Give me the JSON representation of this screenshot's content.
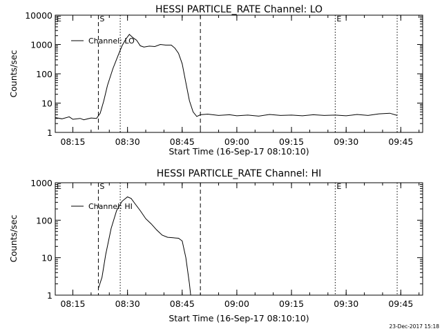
{
  "timestamp": "23-Dec-2017 15:18",
  "chart_data": [
    {
      "type": "line",
      "title": "HESSI PARTICLE_RATE Channel: LO",
      "xlabel": "Start Time (16-Sep-17 08:10:10)",
      "ylabel": "Counts/sec",
      "yscale": "log",
      "xlim": [
        "08:10:10",
        "09:51:00"
      ],
      "ylim": [
        1,
        10000
      ],
      "xticks": [
        "08:15",
        "08:30",
        "08:45",
        "09:00",
        "09:15",
        "09:30",
        "09:45"
      ],
      "yticks": [
        {
          "value": 1,
          "label": "1"
        },
        {
          "value": 10,
          "label": "10"
        },
        {
          "value": 100,
          "label": "100"
        },
        {
          "value": 1000,
          "label": "1000"
        },
        {
          "value": 10000,
          "label": "10000"
        }
      ],
      "legend": {
        "label": "Channel: LO",
        "position": "top-left"
      },
      "markers": [
        {
          "label": "E",
          "time": "08:10:10",
          "style": "none"
        },
        {
          "label": "S",
          "time": "08:22:00",
          "style": "dashed"
        },
        {
          "label": "",
          "time": "08:28:00",
          "style": "dotted"
        },
        {
          "label": "",
          "time": "08:50:00",
          "style": "dashed"
        },
        {
          "label": "E",
          "time": "09:27:00",
          "style": "dotted"
        },
        {
          "label": "",
          "time": "09:44:00",
          "style": "dotted"
        }
      ],
      "series": [
        {
          "name": "Channel: LO",
          "x": [
            "08:10:10",
            "08:12:00",
            "08:14:00",
            "08:15:00",
            "08:17:00",
            "08:18:00",
            "08:20:00",
            "08:21:30",
            "08:22:30",
            "08:23:30",
            "08:24:30",
            "08:26:00",
            "08:27:30",
            "08:28:30",
            "08:29:30",
            "08:30:30",
            "08:31:30",
            "08:32:30",
            "08:33:30",
            "08:34:30",
            "08:36:00",
            "08:37:30",
            "08:39:00",
            "08:40:30",
            "08:42:00",
            "08:43:00",
            "08:44:00",
            "08:45:00",
            "08:46:00",
            "08:47:00",
            "08:48:00",
            "08:49:00",
            "08:50:00",
            "08:52:00",
            "08:55:00",
            "08:58:00",
            "09:00:00",
            "09:03:00",
            "09:06:00",
            "09:09:00",
            "09:12:00",
            "09:15:00",
            "09:18:00",
            "09:21:00",
            "09:24:00",
            "09:27:00",
            "09:30:00",
            "09:33:00",
            "09:36:00",
            "09:39:00",
            "09:42:00",
            "09:44:00"
          ],
          "y": [
            3.2,
            2.9,
            3.4,
            2.8,
            3.0,
            2.7,
            3.1,
            3.0,
            4.5,
            12,
            40,
            150,
            450,
            900,
            1500,
            2200,
            1700,
            1400,
            900,
            820,
            880,
            850,
            1000,
            950,
            950,
            750,
            500,
            220,
            50,
            12,
            5.0,
            3.5,
            4.0,
            4.2,
            3.8,
            4.0,
            3.7,
            3.9,
            3.6,
            4.1,
            3.8,
            3.9,
            3.7,
            4.0,
            3.8,
            3.9,
            3.7,
            4.1,
            3.8,
            4.3,
            4.5,
            3.8
          ]
        }
      ]
    },
    {
      "type": "line",
      "title": "HESSI PARTICLE_RATE Channel: HI",
      "xlabel": "Start Time (16-Sep-17 08:10:10)",
      "ylabel": "Counts/sec",
      "yscale": "log",
      "xlim": [
        "08:10:10",
        "09:51:00"
      ],
      "ylim": [
        1,
        1000
      ],
      "xticks": [
        "08:15",
        "08:30",
        "08:45",
        "09:00",
        "09:15",
        "09:30",
        "09:45"
      ],
      "yticks": [
        {
          "value": 1,
          "label": "1"
        },
        {
          "value": 10,
          "label": "10"
        },
        {
          "value": 100,
          "label": "100"
        },
        {
          "value": 1000,
          "label": "1000"
        }
      ],
      "legend": {
        "label": "Channel: HI",
        "position": "top-left"
      },
      "markers": [
        {
          "label": "E",
          "time": "08:10:10",
          "style": "none"
        },
        {
          "label": "S",
          "time": "08:22:00",
          "style": "dashed"
        },
        {
          "label": "",
          "time": "08:28:00",
          "style": "dotted"
        },
        {
          "label": "",
          "time": "08:50:00",
          "style": "dashed"
        },
        {
          "label": "E",
          "time": "09:27:00",
          "style": "dotted"
        },
        {
          "label": "",
          "time": "09:44:00",
          "style": "dotted"
        }
      ],
      "series": [
        {
          "name": "Channel: HI",
          "x": [
            "08:22:00",
            "08:23:00",
            "08:24:00",
            "08:25:30",
            "08:27:00",
            "08:28:30",
            "08:30:00",
            "08:31:00",
            "08:32:00",
            "08:33:30",
            "08:35:00",
            "08:36:30",
            "08:38:00",
            "08:39:30",
            "08:41:00",
            "08:42:30",
            "08:44:00",
            "08:45:00",
            "08:46:00",
            "08:47:00",
            "08:47:20"
          ],
          "y": [
            1.5,
            3,
            12,
            60,
            180,
            320,
            420,
            380,
            280,
            180,
            110,
            80,
            55,
            40,
            35,
            34,
            33,
            28,
            10,
            2,
            1
          ]
        }
      ]
    }
  ]
}
